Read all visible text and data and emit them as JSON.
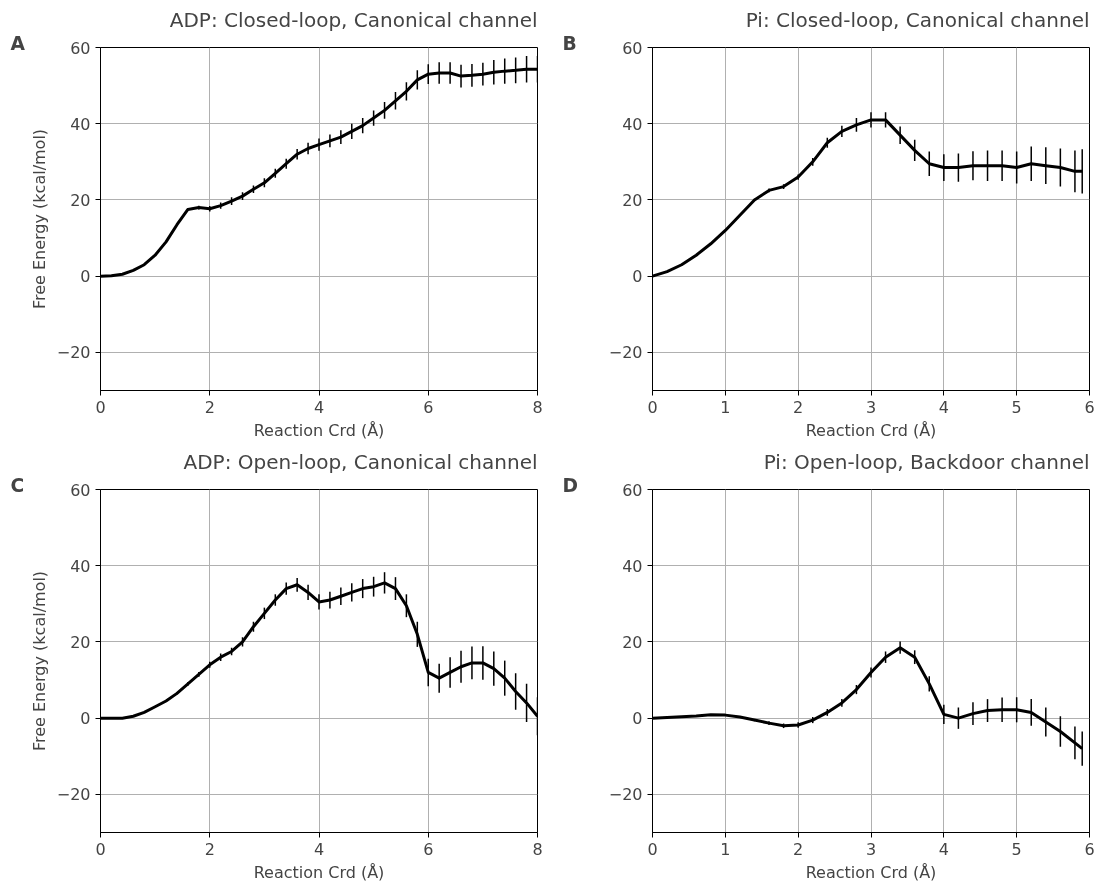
{
  "chart_data": [
    {
      "type": "line",
      "title": "ADP: Closed-loop, Canonical channel",
      "xlabel": "Reaction Crd (Å)",
      "ylabel": "Free Energy (kcal/mol)",
      "annotations": [
        "A"
      ],
      "color": "#000000",
      "grid": true,
      "xlim": [
        0,
        8
      ],
      "ylim": [
        -30,
        60
      ],
      "xticks": [
        0,
        2,
        4,
        6,
        8
      ],
      "yticks": [
        -20,
        0,
        20,
        40,
        60
      ],
      "x": [
        0,
        0.2,
        0.4,
        0.6,
        0.8,
        1.0,
        1.2,
        1.4,
        1.6,
        1.8,
        2.0,
        2.2,
        2.4,
        2.6,
        2.8,
        3.0,
        3.2,
        3.4,
        3.6,
        3.8,
        4.0,
        4.2,
        4.4,
        4.6,
        4.8,
        5.0,
        5.2,
        5.4,
        5.6,
        5.8,
        6.0,
        6.2,
        6.4,
        6.6,
        6.8,
        7.0,
        7.2,
        7.4,
        7.6,
        7.8,
        8.0
      ],
      "values": [
        0,
        0.1,
        0.5,
        1.5,
        3,
        5.5,
        9,
        13.5,
        17.5,
        18,
        17.7,
        18.5,
        19.7,
        21,
        22.8,
        24.5,
        27,
        29.5,
        32,
        33.5,
        34.5,
        35.5,
        36.5,
        38,
        39.5,
        41.5,
        43.5,
        46,
        48.5,
        51.5,
        53,
        53.3,
        53.3,
        52.5,
        52.7,
        53,
        53.5,
        53.8,
        54,
        54.3,
        54.3
      ],
      "errors": [
        0,
        0,
        0,
        0,
        0,
        0,
        0,
        0,
        0.3,
        0.5,
        0.7,
        0.8,
        1,
        1,
        1,
        1.2,
        1.2,
        1.3,
        1.4,
        1.5,
        1.6,
        1.7,
        1.8,
        2,
        2,
        2,
        2.2,
        2.3,
        2.4,
        2.5,
        2.6,
        2.8,
        2.8,
        3,
        3,
        3,
        3.2,
        3.3,
        3.4,
        3.5,
        3.5
      ]
    },
    {
      "type": "line",
      "title": "Pi: Closed-loop, Canonical channel",
      "xlabel": "Reaction Crd (Å)",
      "annotations": [
        "B"
      ],
      "color": "#000000",
      "grid": true,
      "xlim": [
        0,
        6
      ],
      "ylim": [
        -30,
        60
      ],
      "xticks": [
        0,
        1,
        2,
        3,
        4,
        5,
        6
      ],
      "yticks": [
        -20,
        0,
        20,
        40,
        60
      ],
      "x": [
        0,
        0.2,
        0.4,
        0.6,
        0.8,
        1.0,
        1.2,
        1.4,
        1.6,
        1.8,
        2.0,
        2.2,
        2.4,
        2.6,
        2.8,
        3.0,
        3.2,
        3.4,
        3.6,
        3.8,
        4.0,
        4.2,
        4.4,
        4.6,
        4.8,
        5.0,
        5.2,
        5.4,
        5.6,
        5.8,
        5.9
      ],
      "values": [
        0,
        1.2,
        3,
        5.5,
        8.5,
        12,
        16,
        20,
        22.5,
        23.5,
        26,
        30,
        35,
        38,
        39.7,
        41,
        41,
        37,
        33,
        29.5,
        28.5,
        28.5,
        29,
        29,
        29,
        28.5,
        29.5,
        29,
        28.5,
        27.5,
        27.5
      ],
      "errors": [
        0,
        0,
        0,
        0,
        0,
        0,
        0,
        0.3,
        0.5,
        0.6,
        0.7,
        1,
        1.3,
        1.5,
        1.8,
        2,
        2,
        2.3,
        2.8,
        3.2,
        3.5,
        3.7,
        3.8,
        4,
        4,
        4.2,
        4.5,
        4.8,
        5,
        5.5,
        5.8
      ]
    },
    {
      "type": "line",
      "title": "ADP: Open-loop, Canonical channel",
      "xlabel": "Reaction Crd (Å)",
      "ylabel": "Free Energy (kcal/mol)",
      "annotations": [
        "C"
      ],
      "color": "#000000",
      "grid": true,
      "xlim": [
        0,
        8
      ],
      "ylim": [
        -30,
        60
      ],
      "xticks": [
        0,
        2,
        4,
        6,
        8
      ],
      "yticks": [
        -20,
        0,
        20,
        40,
        60
      ],
      "x": [
        0,
        0.2,
        0.4,
        0.6,
        0.8,
        1.0,
        1.2,
        1.4,
        1.6,
        1.8,
        2.0,
        2.2,
        2.4,
        2.6,
        2.8,
        3.0,
        3.2,
        3.4,
        3.6,
        3.8,
        4.0,
        4.2,
        4.4,
        4.6,
        4.8,
        5.0,
        5.2,
        5.4,
        5.6,
        5.8,
        6.0,
        6.2,
        6.4,
        6.6,
        6.8,
        7.0,
        7.2,
        7.4,
        7.6,
        7.8,
        8.0
      ],
      "values": [
        0,
        0,
        0,
        0.5,
        1.5,
        3,
        4.5,
        6.5,
        9,
        11.5,
        14,
        16,
        17.5,
        20,
        24,
        27.5,
        31,
        34,
        35,
        33,
        30.5,
        31,
        32,
        33,
        34,
        34.5,
        35.5,
        34,
        29.5,
        22,
        12,
        10.5,
        12,
        13.5,
        14.5,
        14.5,
        13,
        10.5,
        7,
        4,
        0.5
      ],
      "errors": [
        0,
        0,
        0,
        0,
        0,
        0,
        0,
        0.3,
        0.5,
        0.6,
        0.8,
        1,
        1,
        1.2,
        1.3,
        1.5,
        1.5,
        1.6,
        1.8,
        2,
        2,
        2.2,
        2.3,
        2.4,
        2.5,
        2.6,
        2.8,
        3,
        3,
        3.3,
        3.6,
        3.8,
        4,
        4.2,
        4.3,
        4.4,
        4.5,
        4.6,
        4.8,
        5,
        5
      ]
    },
    {
      "type": "line",
      "title": "Pi: Open-loop, Backdoor channel",
      "xlabel": "Reaction Crd (Å)",
      "annotations": [
        "D"
      ],
      "color": "#000000",
      "grid": true,
      "xlim": [
        0,
        6
      ],
      "ylim": [
        -30,
        60
      ],
      "xticks": [
        0,
        1,
        2,
        3,
        4,
        5,
        6
      ],
      "yticks": [
        -20,
        0,
        20,
        40,
        60
      ],
      "x": [
        0,
        0.2,
        0.4,
        0.6,
        0.8,
        1.0,
        1.2,
        1.4,
        1.6,
        1.8,
        2.0,
        2.2,
        2.4,
        2.6,
        2.8,
        3.0,
        3.2,
        3.4,
        3.6,
        3.8,
        4.0,
        4.2,
        4.4,
        4.6,
        4.8,
        5.0,
        5.2,
        5.4,
        5.6,
        5.8,
        5.9
      ],
      "values": [
        0,
        0.2,
        0.4,
        0.6,
        0.9,
        0.8,
        0.3,
        -0.5,
        -1.3,
        -2,
        -1.8,
        -0.5,
        1.5,
        4,
        7.5,
        12,
        16,
        18.5,
        16,
        9,
        1,
        0,
        1.2,
        2,
        2.2,
        2.2,
        1.5,
        -1,
        -3.5,
        -6.5,
        -8
      ],
      "errors": [
        0,
        0,
        0,
        0,
        0,
        0,
        0.2,
        0.3,
        0.5,
        0.6,
        0.7,
        0.8,
        0.9,
        1,
        1.2,
        1.3,
        1.5,
        1.6,
        1.8,
        2,
        2.5,
        2.8,
        3,
        3,
        3.2,
        3.3,
        3.5,
        3.8,
        4,
        4.3,
        4.5
      ]
    }
  ]
}
